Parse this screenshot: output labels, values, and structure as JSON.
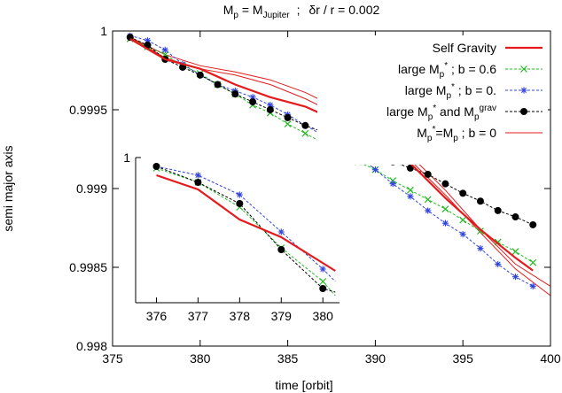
{
  "chart_data": [
    {
      "type": "line",
      "title": "",
      "title_parts": {
        "lhs_main": "M",
        "lhs_sub": "p",
        "eq": " = M",
        "rhs_sub": "Jupiter",
        "sep": ";",
        "rest": "δr / r = 0.002"
      },
      "xlabel": "time [orbit]",
      "ylabel": "semi major axis",
      "xlim": [
        375,
        400
      ],
      "ylim": [
        0.998,
        1.0
      ],
      "xticks": [
        375,
        380,
        385,
        390,
        395,
        400
      ],
      "yticks": [
        0.998,
        0.9985,
        0.999,
        0.9995,
        1.0
      ],
      "xtick_labels": [
        "375",
        "380",
        "385",
        "390",
        "395",
        "400"
      ],
      "ytick_labels": [
        "0.998",
        "0.9985",
        "0.999",
        "0.9995",
        "1"
      ],
      "legend_position": "top-right",
      "legend": [
        {
          "id": "sg",
          "parts": [
            [
              "Self Gravity",
              ""
            ]
          ]
        },
        {
          "id": "b06",
          "parts": [
            [
              "large M",
              ""
            ],
            [
              "p",
              "sub"
            ],
            [
              "*",
              "sup"
            ],
            [
              " ; b = 0.6",
              ""
            ]
          ]
        },
        {
          "id": "b0",
          "parts": [
            [
              "large M",
              ""
            ],
            [
              "p",
              "sub"
            ],
            [
              "*",
              "sup"
            ],
            [
              " ; b = 0.",
              ""
            ]
          ]
        },
        {
          "id": "grav",
          "parts": [
            [
              "large M",
              ""
            ],
            [
              "p",
              "sub"
            ],
            [
              "*",
              "sup"
            ],
            [
              " and M",
              ""
            ],
            [
              "p",
              "sub"
            ],
            [
              "grav",
              "sup"
            ]
          ]
        },
        {
          "id": "mp",
          "parts": [
            [
              "M",
              ""
            ],
            [
              "p",
              "sub"
            ],
            [
              "*",
              "sup"
            ],
            [
              "=M",
              ""
            ],
            [
              "p",
              "sub"
            ],
            [
              " ; b = 0",
              ""
            ]
          ]
        }
      ],
      "series": [
        {
          "id": "sg",
          "style": "thick",
          "color": "#e41a1c",
          "x": [
            376,
            378,
            380,
            382,
            384,
            386,
            388,
            390,
            392,
            394,
            396,
            398,
            399
          ],
          "y": [
            0.99995,
            0.99982,
            0.99976,
            0.99966,
            0.99958,
            0.99952,
            0.99942,
            0.99928,
            0.99916,
            0.99894,
            0.99874,
            0.99856,
            0.99848
          ]
        },
        {
          "id": "b06",
          "style": "dashed",
          "color": "#22bb22",
          "marker": "x",
          "x": [
            376,
            377,
            378,
            379,
            380,
            381,
            382,
            383,
            384,
            385,
            386,
            387,
            388,
            389,
            390,
            391,
            392,
            393,
            394,
            395,
            396,
            397,
            398,
            399
          ],
          "y": [
            0.99995,
            0.9999,
            0.99985,
            0.99978,
            0.99973,
            0.99966,
            0.9996,
            0.99953,
            0.99948,
            0.99941,
            0.99935,
            0.99929,
            0.99924,
            0.99917,
            0.99912,
            0.99905,
            0.99899,
            0.99893,
            0.99887,
            0.9988,
            0.99873,
            0.99866,
            0.9986,
            0.99853
          ]
        },
        {
          "id": "b0",
          "style": "dashed",
          "color": "#3344dd",
          "marker": "asterisk",
          "x": [
            376,
            377,
            378,
            379,
            380,
            381,
            382,
            383,
            384,
            385,
            386,
            387,
            388,
            389,
            390,
            391,
            392,
            393,
            394,
            395,
            396,
            397,
            398,
            399
          ],
          "y": [
            0.99997,
            0.99994,
            0.99988,
            0.99979,
            0.99972,
            0.99966,
            0.99962,
            0.99958,
            0.99953,
            0.99947,
            0.9994,
            0.99934,
            0.99928,
            0.99921,
            0.99912,
            0.99903,
            0.99895,
            0.99886,
            0.99878,
            0.99871,
            0.99862,
            0.99852,
            0.99844,
            0.99838
          ]
        },
        {
          "id": "grav",
          "style": "dashed",
          "color": "#000000",
          "marker": "dot",
          "x": [
            376,
            377,
            378,
            379,
            380,
            381,
            382,
            383,
            384,
            385,
            386,
            387,
            388,
            389,
            390,
            391,
            392,
            393,
            394,
            395,
            396,
            397,
            398,
            399
          ],
          "y": [
            0.99996,
            0.99991,
            0.99982,
            0.99977,
            0.99972,
            0.99966,
            0.9996,
            0.99955,
            0.9995,
            0.99945,
            0.9994,
            0.99936,
            0.99932,
            0.99926,
            0.99921,
            0.99917,
            0.99913,
            0.99909,
            0.99903,
            0.99897,
            0.99892,
            0.99886,
            0.99882,
            0.99877
          ]
        },
        {
          "id": "mp_a",
          "style": "thin",
          "color": "#e41a1c",
          "x": [
            376,
            378,
            380,
            382,
            384,
            386,
            388,
            390,
            392,
            394,
            396,
            398,
            400
          ],
          "y": [
            0.99996,
            0.99983,
            0.99976,
            0.99972,
            0.99966,
            0.99957,
            0.99946,
            0.99932,
            0.99918,
            0.99896,
            0.99872,
            0.99849,
            0.99832
          ]
        },
        {
          "id": "mp_b",
          "style": "thin",
          "color": "#e41a1c",
          "x": [
            376,
            378,
            380,
            382,
            384,
            386,
            388,
            390,
            392,
            394,
            396,
            398,
            400
          ],
          "y": [
            0.99996,
            0.99985,
            0.99978,
            0.99974,
            0.99969,
            0.99961,
            0.9995,
            0.99937,
            0.99921,
            0.99899,
            0.99874,
            0.99852,
            0.99838
          ]
        }
      ]
    },
    {
      "type": "line",
      "title": "",
      "xlim": [
        375.5,
        380.4
      ],
      "ylim": [
        0.99918,
        1.0
      ],
      "xticks": [
        376,
        377,
        378,
        379,
        380
      ],
      "xtick_labels": [
        "376",
        "377",
        "378",
        "379",
        "380"
      ],
      "ytick_labels": [
        "1"
      ],
      "series": [
        {
          "id": "sg",
          "style": "thick",
          "color": "#e41a1c",
          "x": [
            376,
            377,
            378,
            379,
            380.3
          ],
          "y": [
            0.9999,
            0.99982,
            0.99965,
            0.99955,
            0.99936
          ]
        },
        {
          "id": "b06",
          "style": "dashed",
          "color": "#22bb22",
          "marker": "x",
          "x": [
            376,
            377,
            378,
            379,
            380,
            380.3
          ],
          "y": [
            0.99994,
            0.99986,
            0.99972,
            0.99949,
            0.9993,
            0.99922
          ]
        },
        {
          "id": "b0",
          "style": "dashed",
          "color": "#3344dd",
          "marker": "asterisk",
          "x": [
            376,
            377,
            378,
            379,
            380,
            380.3
          ],
          "y": [
            0.99995,
            0.9999,
            0.99979,
            0.99958,
            0.99937,
            0.9993
          ]
        },
        {
          "id": "grav",
          "style": "dashed",
          "color": "#000000",
          "marker": "dot",
          "x": [
            376,
            377,
            378,
            379,
            380,
            380.3
          ],
          "y": [
            0.99995,
            0.99986,
            0.99974,
            0.99948,
            0.99926,
            0.99924
          ]
        }
      ]
    }
  ]
}
